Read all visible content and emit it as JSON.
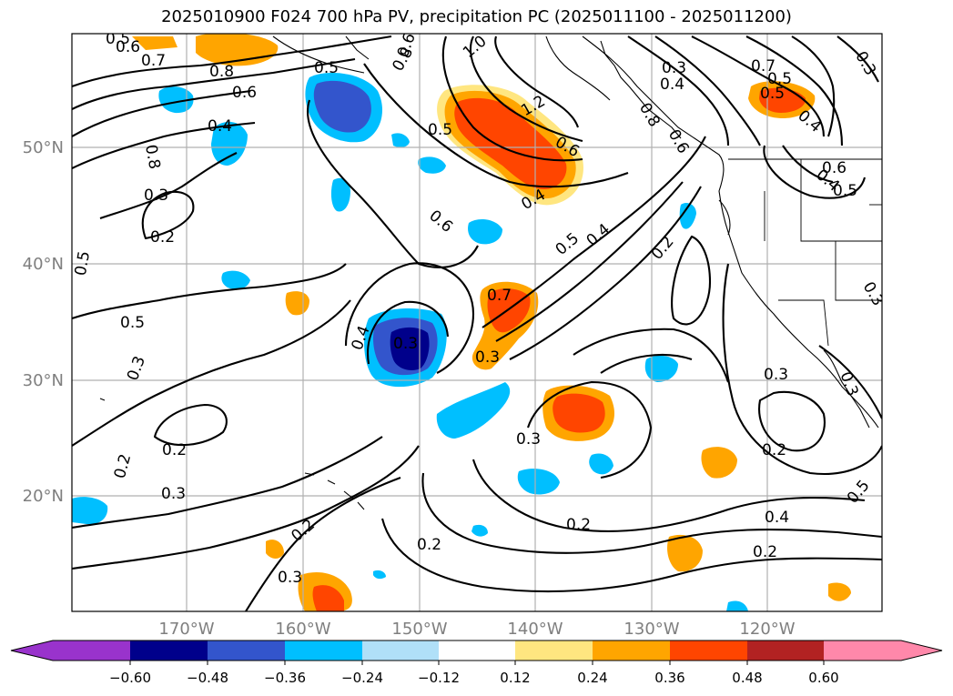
{
  "title": "2025010900 F024 700 hPa PV, precipitation PC (2025011100 - 2025011200)",
  "map": {
    "lat_labels": [
      "50°N",
      "40°N",
      "30°N",
      "20°N"
    ],
    "lon_labels": [
      "170°W",
      "160°W",
      "150°W",
      "140°W",
      "130°W",
      "120°W"
    ],
    "gridlines": true
  },
  "colorbar": {
    "ticks": [
      "−0.60",
      "−0.48",
      "−0.36",
      "−0.24",
      "−0.12",
      "0.12",
      "0.24",
      "0.36",
      "0.48",
      "0.60"
    ],
    "colors": [
      "#9933cc",
      "#00008b",
      "#3355cc",
      "#00bfff",
      "#b0e0f8",
      "#ffffff",
      "#ffe680",
      "#ffa500",
      "#ff4500",
      "#b22222",
      "#ff88aa"
    ],
    "extend": "both"
  },
  "contour_labels": [
    "0.5",
    "0.6",
    "0.7",
    "0.8",
    "0.6",
    "0.4",
    "0.8",
    "0.3",
    "0.2",
    "0.5",
    "0.5",
    "0.3",
    "0.2",
    "0.3",
    "0.2",
    "0.3",
    "0.4",
    "0.3",
    "0.5",
    "0.6",
    "0.7",
    "0.3",
    "0.4",
    "0.5",
    "0.8",
    "1.0",
    "1.2",
    "0.5",
    "0.6",
    "0.4",
    "0.6",
    "0.5",
    "0.4",
    "0.2",
    "0.3",
    "0.4",
    "0.7",
    "0.5",
    "0.4",
    "0.6",
    "0.5",
    "0.3",
    "0.3",
    "0.3",
    "0.2",
    "0.3",
    "0.2",
    "0.4",
    "0.2",
    "0.5",
    "0.2",
    "0.3",
    "0.2",
    "0.8",
    "0.6"
  ]
}
